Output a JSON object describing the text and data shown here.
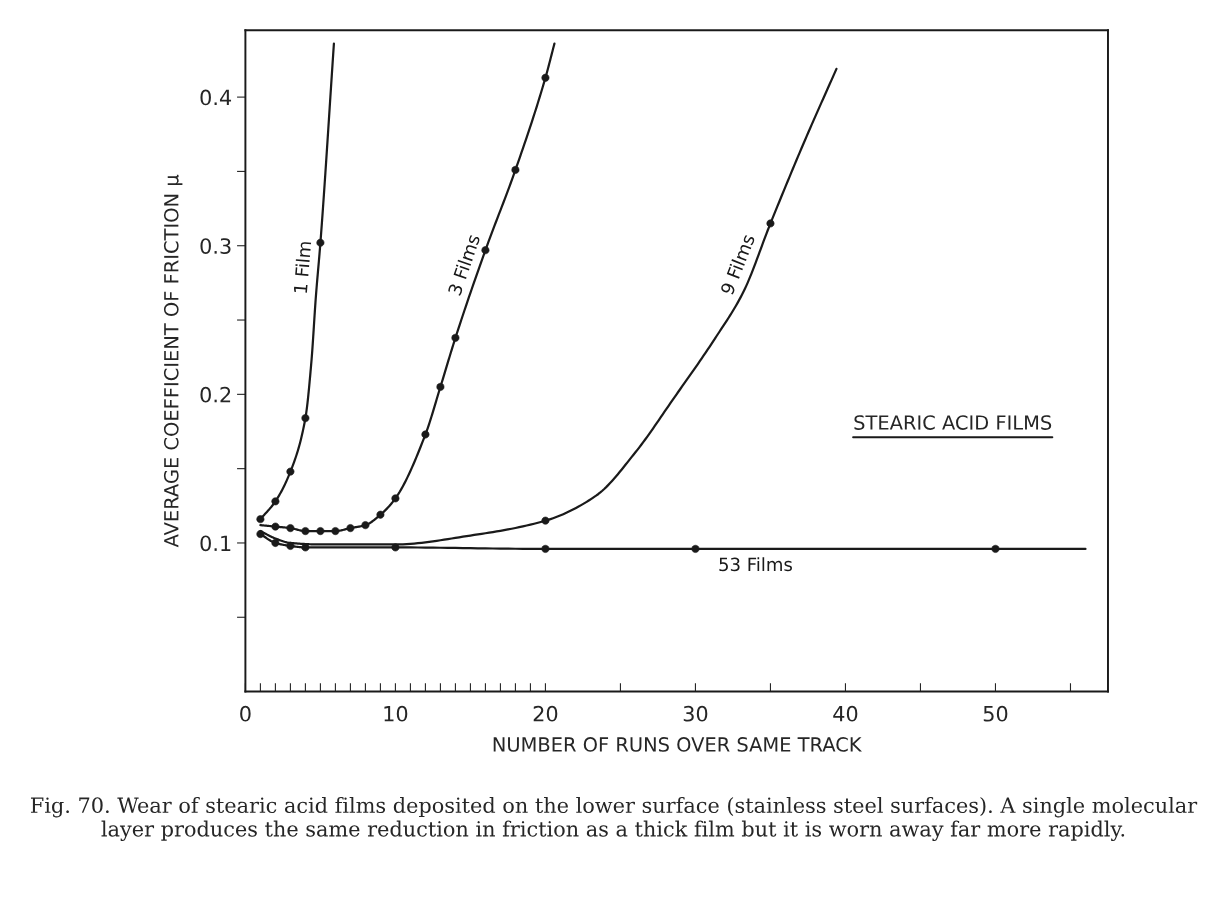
{
  "chart_data": {
    "type": "line",
    "xlabel": "NUMBER OF RUNS OVER SAME TRACK",
    "ylabel": "AVERAGE COEFFICIENT OF FRICTION μ",
    "xlim": [
      0,
      57.5
    ],
    "ylim": [
      0,
      0.445
    ],
    "xticks": [
      0,
      {
        "value": 1,
        "label": null
      },
      {
        "value": 2,
        "label": null
      },
      {
        "value": 3,
        "label": null
      },
      {
        "value": 4,
        "label": null
      },
      {
        "value": 5,
        "label": null
      },
      {
        "value": 6,
        "label": null
      },
      {
        "value": 7,
        "label": null
      },
      {
        "value": 8,
        "label": null
      },
      {
        "value": 9,
        "label": null
      },
      10,
      {
        "value": 11,
        "label": null
      },
      {
        "value": 12,
        "label": null
      },
      {
        "value": 13,
        "label": null
      },
      {
        "value": 14,
        "label": null
      },
      {
        "value": 15,
        "label": null
      },
      {
        "value": 16,
        "label": null
      },
      {
        "value": 17,
        "label": null
      },
      {
        "value": 18,
        "label": null
      },
      {
        "value": 19,
        "label": null
      },
      20,
      {
        "value": 25,
        "label": null
      },
      30,
      {
        "value": 35,
        "label": null
      },
      40,
      {
        "value": 45,
        "label": null
      },
      50,
      {
        "value": 55,
        "label": null
      }
    ],
    "yticks": [
      {
        "value": 0.05,
        "label": null
      },
      0.1,
      {
        "value": 0.15,
        "label": null
      },
      0.2,
      {
        "value": 0.25,
        "label": null
      },
      0.3,
      {
        "value": 0.35,
        "label": null
      },
      0.4
    ],
    "grid": false,
    "legend": false,
    "series": [
      {
        "name": "1 Film",
        "color": "#1a1a1a",
        "marker": "none",
        "x": [
          1,
          2,
          3,
          4,
          4.4,
          4.7,
          5,
          5.9
        ],
        "values": [
          0.116,
          0.128,
          0.148,
          0.184,
          0.222,
          0.266,
          0.302,
          0.436
        ]
      },
      {
        "type": "scatter",
        "color": "#1a1a1a",
        "marker": "circle",
        "x": [
          1,
          2,
          3,
          4,
          5
        ],
        "values": [
          0.116,
          0.128,
          0.148,
          0.184,
          0.302
        ]
      },
      {
        "name": "3 Films",
        "color": "#1a1a1a",
        "marker": "none",
        "x": [
          1,
          2,
          3,
          4,
          5,
          6,
          7,
          8,
          9,
          10,
          12,
          13,
          14,
          16,
          18,
          20,
          20.6
        ],
        "values": [
          0.112,
          0.111,
          0.11,
          0.108,
          0.108,
          0.108,
          0.11,
          0.112,
          0.119,
          0.13,
          0.173,
          0.205,
          0.238,
          0.297,
          0.351,
          0.413,
          0.436
        ]
      },
      {
        "type": "scatter",
        "color": "#1a1a1a",
        "marker": "circle",
        "x": [
          2,
          3,
          4,
          5,
          6,
          7,
          8,
          9,
          10,
          12,
          13,
          14,
          16,
          18,
          20
        ],
        "values": [
          0.111,
          0.11,
          0.108,
          0.108,
          0.108,
          0.11,
          0.112,
          0.119,
          0.13,
          0.173,
          0.205,
          0.238,
          0.297,
          0.351,
          0.413
        ]
      },
      {
        "name": "9 Films",
        "color": "#1a1a1a",
        "marker": "none",
        "x": [
          1,
          2,
          3,
          5,
          10,
          15,
          20,
          23.4,
          26,
          28.6,
          31.2,
          33.2,
          35,
          37.3,
          39.4
        ],
        "values": [
          0.108,
          0.103,
          0.1,
          0.099,
          0.099,
          0.105,
          0.115,
          0.132,
          0.161,
          0.198,
          0.236,
          0.269,
          0.315,
          0.371,
          0.419
        ]
      },
      {
        "type": "scatter",
        "color": "#1a1a1a",
        "marker": "circle",
        "x": [
          20,
          35
        ],
        "values": [
          0.115,
          0.315
        ]
      },
      {
        "name": "53 Films",
        "color": "#1a1a1a",
        "marker": "none",
        "x": [
          1,
          2,
          3,
          4,
          10,
          20,
          30,
          50,
          56
        ],
        "values": [
          0.106,
          0.1,
          0.098,
          0.097,
          0.097,
          0.096,
          0.096,
          0.096,
          0.096
        ]
      },
      {
        "type": "scatter",
        "color": "#1a1a1a",
        "marker": "circle",
        "x": [
          1,
          2,
          3,
          4,
          10,
          20,
          30,
          50
        ],
        "values": [
          0.106,
          0.1,
          0.098,
          0.097,
          0.097,
          0.096,
          0.096,
          0.096
        ]
      }
    ],
    "annotations": [
      "STEARIC ACID FILMS",
      "Fig. 70. Wear of stearic acid films deposited on the lower surface (stainless steel surfaces). A single molecular layer produces the same reduction in friction as a thick film but it is worn away far more rapidly."
    ]
  }
}
